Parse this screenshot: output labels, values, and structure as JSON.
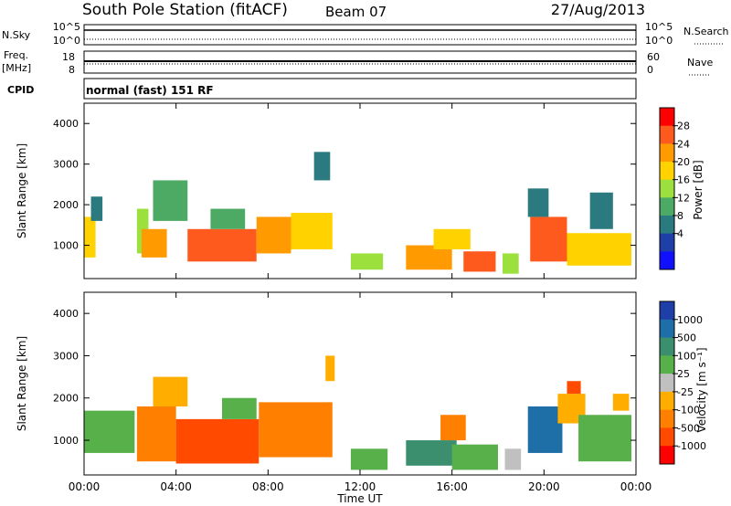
{
  "header": {
    "station": "South Pole Station (fitACF)",
    "beam": "Beam 07",
    "date": "27/Aug/2013"
  },
  "strip_labels": {
    "nsky": "N.Sky",
    "nsky_tick_top": "10^5",
    "nsky_tick_bottom": "10^0",
    "nsearch": "N.Search",
    "nsearch_tick_top": "10^5",
    "nsearch_tick_bottom": "10^0",
    "freq_line1": "Freq.",
    "freq_line2": "[MHz]",
    "freq_tick_top": "18",
    "freq_tick_bottom": "8",
    "nave": "Nave",
    "nave_tick_top": "60",
    "nave_tick_bottom": "0",
    "cpid": "CPID",
    "cpid_value": "normal (fast) 151 RF"
  },
  "power_colorbar": {
    "label": "Power [dB]",
    "ticks": [
      "28",
      "24",
      "20",
      "16",
      "12",
      "8",
      "4"
    ],
    "colors": [
      "#ff0000",
      "#ff5a1e",
      "#ff9a00",
      "#ffd200",
      "#9be03c",
      "#4caa64",
      "#2a7a80",
      "#1f3fa8",
      "#1010ff"
    ]
  },
  "velocity_colorbar": {
    "label": "Velocity [m s⁻¹]",
    "ticks": [
      "1000",
      "500",
      "100",
      "25",
      "-25",
      "-100",
      "-500",
      "-1000"
    ],
    "colors": [
      "#1f3fa8",
      "#1e6ea8",
      "#3b8f6e",
      "#58b04a",
      "#c0c0c0",
      "#ffae00",
      "#ff8000",
      "#ff4a00",
      "#ff0000"
    ]
  },
  "chart_data": [
    {
      "type": "heatmap",
      "title": "",
      "ylabel": "Slant Range [km]",
      "xlabel": "",
      "ylim": [
        180,
        4500
      ],
      "yticks": [
        "1000",
        "2000",
        "3000",
        "4000"
      ],
      "quantity": "Power",
      "colorbar_range": [
        0,
        30
      ],
      "blocks": [
        {
          "t0": 0.0,
          "t1": 0.5,
          "r0": 700,
          "r1": 1700,
          "level": 20
        },
        {
          "t0": 0.3,
          "t1": 0.8,
          "r0": 1600,
          "r1": 2200,
          "level": 8
        },
        {
          "t0": 2.3,
          "t1": 2.8,
          "r0": 800,
          "r1": 1900,
          "level": 16
        },
        {
          "t0": 2.5,
          "t1": 3.6,
          "r0": 700,
          "r1": 1400,
          "level": 24
        },
        {
          "t0": 3.0,
          "t1": 4.5,
          "r0": 1600,
          "r1": 2600,
          "level": 10
        },
        {
          "t0": 4.5,
          "t1": 7.5,
          "r0": 600,
          "r1": 1400,
          "level": 26
        },
        {
          "t0": 5.5,
          "t1": 7.0,
          "r0": 1400,
          "r1": 1900,
          "level": 12
        },
        {
          "t0": 7.5,
          "t1": 9.0,
          "r0": 800,
          "r1": 1700,
          "level": 22
        },
        {
          "t0": 9.0,
          "t1": 10.8,
          "r0": 900,
          "r1": 1800,
          "level": 18
        },
        {
          "t0": 10.0,
          "t1": 10.7,
          "r0": 2600,
          "r1": 3300,
          "level": 6
        },
        {
          "t0": 11.6,
          "t1": 13.0,
          "r0": 400,
          "r1": 800,
          "level": 14
        },
        {
          "t0": 14.0,
          "t1": 16.0,
          "r0": 400,
          "r1": 1000,
          "level": 24
        },
        {
          "t0": 15.2,
          "t1": 16.8,
          "r0": 900,
          "r1": 1400,
          "level": 18
        },
        {
          "t0": 16.5,
          "t1": 17.9,
          "r0": 350,
          "r1": 850,
          "level": 27
        },
        {
          "t0": 18.2,
          "t1": 18.9,
          "r0": 300,
          "r1": 800,
          "level": 14
        },
        {
          "t0": 19.4,
          "t1": 21.0,
          "r0": 600,
          "r1": 1700,
          "level": 26
        },
        {
          "t0": 19.3,
          "t1": 20.2,
          "r0": 1700,
          "r1": 2400,
          "level": 6
        },
        {
          "t0": 21.0,
          "t1": 23.8,
          "r0": 500,
          "r1": 1300,
          "level": 20
        },
        {
          "t0": 22.0,
          "t1": 23.0,
          "r0": 1400,
          "r1": 2300,
          "level": 8
        }
      ]
    },
    {
      "type": "heatmap",
      "title": "",
      "ylabel": "Slant Range [km]",
      "xlabel": "Time UT",
      "ylim": [
        180,
        4500
      ],
      "yticks": [
        "1000",
        "2000",
        "3000",
        "4000"
      ],
      "xticks": [
        "00:00",
        "04:00",
        "08:00",
        "12:00",
        "16:00",
        "20:00",
        "00:00"
      ],
      "xlim": [
        0,
        24
      ],
      "quantity": "Velocity",
      "blocks": [
        {
          "t0": 0.0,
          "t1": 2.2,
          "r0": 700,
          "r1": 1700,
          "category": "100"
        },
        {
          "t0": 2.3,
          "t1": 4.0,
          "r0": 500,
          "r1": 1800,
          "category": "-100"
        },
        {
          "t0": 3.0,
          "t1": 4.5,
          "r0": 1800,
          "r1": 2500,
          "category": "-25"
        },
        {
          "t0": 4.0,
          "t1": 7.6,
          "r0": 450,
          "r1": 1500,
          "category": "-500"
        },
        {
          "t0": 6.0,
          "t1": 7.5,
          "r0": 1500,
          "r1": 2000,
          "category": "100"
        },
        {
          "t0": 7.6,
          "t1": 10.8,
          "r0": 600,
          "r1": 1900,
          "category": "-100"
        },
        {
          "t0": 10.5,
          "t1": 10.9,
          "r0": 2400,
          "r1": 3000,
          "category": "-25"
        },
        {
          "t0": 11.6,
          "t1": 13.2,
          "r0": 300,
          "r1": 800,
          "category": "100"
        },
        {
          "t0": 14.0,
          "t1": 16.2,
          "r0": 400,
          "r1": 1000,
          "category": "500"
        },
        {
          "t0": 15.5,
          "t1": 16.6,
          "r0": 1000,
          "r1": 1600,
          "category": "-100"
        },
        {
          "t0": 16.0,
          "t1": 18.0,
          "r0": 300,
          "r1": 900,
          "category": "100"
        },
        {
          "t0": 18.3,
          "t1": 19.0,
          "r0": 300,
          "r1": 800,
          "category": "25"
        },
        {
          "t0": 19.3,
          "t1": 20.8,
          "r0": 700,
          "r1": 1800,
          "category": "1000"
        },
        {
          "t0": 20.6,
          "t1": 21.8,
          "r0": 1400,
          "r1": 2100,
          "category": "-25"
        },
        {
          "t0": 21.0,
          "t1": 21.6,
          "r0": 2100,
          "r1": 2400,
          "category": "-500"
        },
        {
          "t0": 21.5,
          "t1": 23.8,
          "r0": 500,
          "r1": 1600,
          "category": "100"
        },
        {
          "t0": 23.0,
          "t1": 23.7,
          "r0": 1700,
          "r1": 2100,
          "category": "-25"
        }
      ]
    }
  ]
}
